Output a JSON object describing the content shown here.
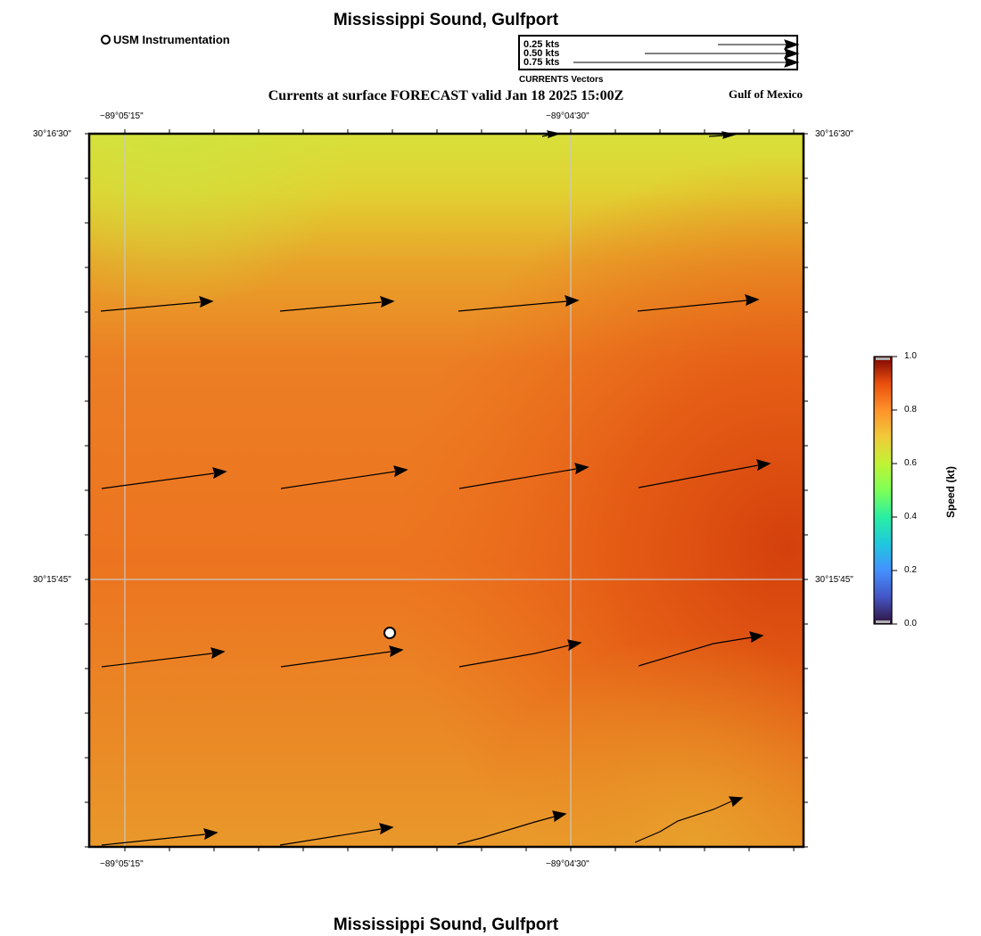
{
  "title": "Mississippi Sound, Gulfport",
  "footer_title": "Mississippi Sound, Gulfport",
  "legend": {
    "station_label": "USM Instrumentation"
  },
  "vector_legend": {
    "entries": [
      "0.25 kts",
      "0.50 kts",
      "0.75 kts"
    ],
    "caption": "CURRENTS Vectors"
  },
  "subtitle": "Currents at surface FORECAST valid Jan 18 2025 15:00Z",
  "region_label": "Gulf of Mexico",
  "axes": {
    "x_ticks": [
      "−89°05'15\"",
      "−89°04'30\""
    ],
    "y_ticks": [
      "30°16'30\"",
      "30°15'45\""
    ]
  },
  "colorbar": {
    "label": "Speed (kt)",
    "ticks": [
      "1.0",
      "0.8",
      "0.6",
      "0.4",
      "0.2",
      "0.0"
    ],
    "colors": [
      "#7a0403",
      "#c42503",
      "#f05b12",
      "#fe9b2d",
      "#e1dd37",
      "#a4fc3c",
      "#46f884",
      "#1ae4b6",
      "#36aaf9",
      "#4777ef",
      "#30123b"
    ]
  },
  "field_colors": {
    "north": "#d8e03a",
    "mid": "#ec7a22",
    "east": "#d6450e",
    "southeast": "#e8a02a"
  }
}
